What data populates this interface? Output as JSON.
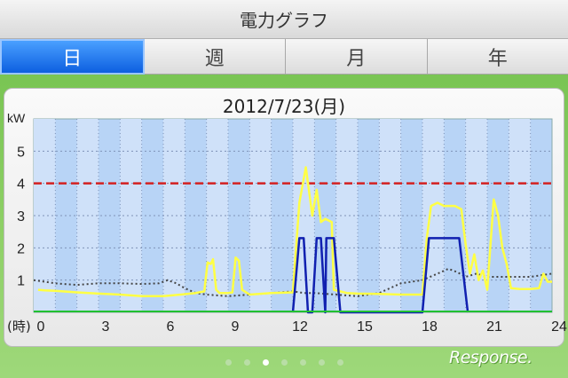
{
  "header": {
    "title": "電力グラフ"
  },
  "tabs": [
    {
      "label": "日",
      "active": true
    },
    {
      "label": "週",
      "active": false
    },
    {
      "label": "月",
      "active": false
    },
    {
      "label": "年",
      "active": false
    }
  ],
  "panel": {
    "date": "2012/7/23(月)"
  },
  "pager": {
    "count": 7,
    "active_index": 2
  },
  "brand": "Response.",
  "colors": {
    "threshold": "#d42020",
    "yellow_series": "#ffff44",
    "blue_series": "#1020b0",
    "dotted_series": "#444444",
    "tab_active": "#1a6cf0"
  },
  "chart_data": {
    "type": "line",
    "ylabel": "kW",
    "xlabel": "(時)",
    "xlim": [
      0,
      24
    ],
    "ylim": [
      0,
      6
    ],
    "x_ticks": [
      "0",
      "3",
      "6",
      "9",
      "12",
      "15",
      "18",
      "21",
      "24"
    ],
    "x_tick_values": [
      0,
      3,
      6,
      9,
      12,
      15,
      18,
      21,
      24
    ],
    "y_ticks": [
      "1",
      "2",
      "3",
      "4",
      "5"
    ],
    "y_tick_values": [
      1,
      2,
      3,
      4,
      5
    ],
    "threshold": 4,
    "grid": true,
    "series": [
      {
        "style": "yellow",
        "points": [
          [
            0.2,
            0.7
          ],
          [
            0.5,
            0.68
          ],
          [
            1,
            0.67
          ],
          [
            2,
            0.62
          ],
          [
            3,
            0.58
          ],
          [
            4,
            0.55
          ],
          [
            5,
            0.5
          ],
          [
            6,
            0.5
          ],
          [
            6.8,
            0.55
          ],
          [
            7.5,
            0.6
          ],
          [
            7.9,
            0.65
          ],
          [
            8.05,
            1.55
          ],
          [
            8.2,
            1.5
          ],
          [
            8.3,
            1.65
          ],
          [
            8.45,
            0.7
          ],
          [
            8.6,
            0.6
          ],
          [
            9,
            0.6
          ],
          [
            9.2,
            0.62
          ],
          [
            9.35,
            1.7
          ],
          [
            9.5,
            1.6
          ],
          [
            9.65,
            0.7
          ],
          [
            10,
            0.55
          ],
          [
            11,
            0.6
          ],
          [
            12,
            0.62
          ],
          [
            12.3,
            3.4
          ],
          [
            12.6,
            4.5
          ],
          [
            12.9,
            3.0
          ],
          [
            13.1,
            3.8
          ],
          [
            13.3,
            2.8
          ],
          [
            13.5,
            2.9
          ],
          [
            13.8,
            2.8
          ],
          [
            13.9,
            0.7
          ],
          [
            14.5,
            0.6
          ],
          [
            15,
            0.58
          ],
          [
            16,
            0.57
          ],
          [
            17,
            0.55
          ],
          [
            18,
            0.55
          ],
          [
            18.2,
            2.3
          ],
          [
            18.4,
            3.3
          ],
          [
            18.7,
            3.4
          ],
          [
            19,
            3.3
          ],
          [
            19.5,
            3.3
          ],
          [
            19.8,
            3.2
          ],
          [
            20.0,
            2.1
          ],
          [
            20.2,
            1.2
          ],
          [
            20.4,
            1.8
          ],
          [
            20.6,
            1.0
          ],
          [
            20.8,
            1.3
          ],
          [
            21.0,
            0.7
          ],
          [
            21.3,
            3.5
          ],
          [
            21.5,
            3.0
          ],
          [
            21.7,
            2.0
          ],
          [
            21.9,
            1.5
          ],
          [
            22.1,
            0.75
          ],
          [
            22.5,
            0.72
          ],
          [
            23,
            0.72
          ],
          [
            23.4,
            0.75
          ],
          [
            23.6,
            1.2
          ],
          [
            23.8,
            0.95
          ],
          [
            24,
            0.95
          ]
        ]
      },
      {
        "style": "blue",
        "points": [
          [
            12.0,
            0
          ],
          [
            12.3,
            2.3
          ],
          [
            12.5,
            2.3
          ],
          [
            12.7,
            0
          ],
          [
            12.9,
            0
          ],
          [
            13.1,
            2.3
          ],
          [
            13.3,
            2.3
          ],
          [
            13.5,
            0
          ],
          [
            13.55,
            2.3
          ],
          [
            13.9,
            2.3
          ],
          [
            14.2,
            0
          ],
          [
            18.0,
            0
          ],
          [
            18.3,
            2.3
          ],
          [
            19.5,
            2.3
          ],
          [
            19.7,
            2.3
          ],
          [
            20.1,
            0
          ]
        ]
      },
      {
        "style": "dotted",
        "points": [
          [
            0,
            1.0
          ],
          [
            1,
            0.9
          ],
          [
            2,
            0.85
          ],
          [
            3,
            0.9
          ],
          [
            4,
            0.9
          ],
          [
            5,
            0.88
          ],
          [
            5.8,
            0.9
          ],
          [
            6.2,
            1.0
          ],
          [
            6.6,
            0.9
          ],
          [
            7,
            0.75
          ],
          [
            7.5,
            0.6
          ],
          [
            8,
            0.55
          ],
          [
            9,
            0.5
          ],
          [
            10,
            0.55
          ],
          [
            11,
            0.6
          ],
          [
            12,
            0.65
          ],
          [
            12.5,
            0.6
          ],
          [
            13,
            0.6
          ],
          [
            14,
            0.55
          ],
          [
            15,
            0.5
          ],
          [
            16,
            0.6
          ],
          [
            17,
            0.9
          ],
          [
            18,
            1.0
          ],
          [
            18.7,
            1.2
          ],
          [
            19.2,
            1.35
          ],
          [
            19.6,
            1.25
          ],
          [
            20,
            1.1
          ],
          [
            20.5,
            1.2
          ],
          [
            21,
            1.1
          ],
          [
            22,
            1.1
          ],
          [
            23,
            1.1
          ],
          [
            24,
            1.2
          ]
        ]
      }
    ]
  }
}
